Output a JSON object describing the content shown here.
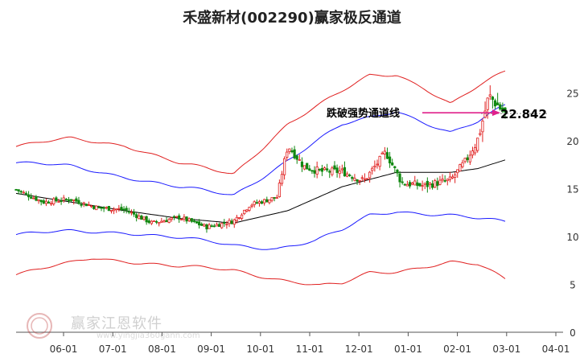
{
  "chart_data": {
    "type": "candlestick",
    "title": "禾盛新材(002290)赢家极反通道",
    "x_ticks": [
      "06-01",
      "07-01",
      "08-01",
      "09-01",
      "10-01",
      "11-01",
      "12-01",
      "01-01",
      "02-01",
      "03-01",
      "04-01"
    ],
    "y_ticks": [
      "0",
      "5",
      "10",
      "15",
      "20",
      "25"
    ],
    "ylim": [
      0,
      27
    ],
    "grid": false,
    "annotation": {
      "label": "跌破强势通道线",
      "value": 22.842,
      "value_text": "22.842"
    },
    "series": [
      {
        "role": "price",
        "colors": {
          "up": "#e02020",
          "down": "#118811"
        }
      },
      {
        "role": "middle",
        "color": "#000000"
      },
      {
        "role": "inner-bands",
        "color": "#1a1aff"
      },
      {
        "role": "outer-bands",
        "color": "#e02020"
      }
    ],
    "anchors": {
      "close": [
        [
          0,
          14.9
        ],
        [
          0.5,
          13.6
        ],
        [
          1,
          13.9
        ],
        [
          1.5,
          13.0
        ],
        [
          2,
          12.8
        ],
        [
          2.5,
          11.4
        ],
        [
          3,
          12.0
        ],
        [
          3.5,
          11.0
        ],
        [
          4,
          11.6
        ],
        [
          4.3,
          13.3
        ],
        [
          4.8,
          14.1
        ],
        [
          5,
          19.5
        ],
        [
          5.3,
          17.3
        ],
        [
          5.6,
          16.8
        ],
        [
          6,
          16.8
        ],
        [
          6.4,
          15.8
        ],
        [
          6.8,
          18.8
        ],
        [
          7.1,
          15.6
        ],
        [
          7.5,
          15.3
        ],
        [
          8,
          15.9
        ],
        [
          8.3,
          18.1
        ],
        [
          8.5,
          20.2
        ],
        [
          8.7,
          24.7
        ],
        [
          8.85,
          23.8
        ],
        [
          9,
          22.8
        ]
      ],
      "middle": [
        [
          0,
          14.5
        ],
        [
          1,
          13.6
        ],
        [
          2,
          12.7
        ],
        [
          3,
          11.9
        ],
        [
          4,
          11.4
        ],
        [
          5,
          12.7
        ],
        [
          6,
          15.2
        ],
        [
          7,
          16.7
        ],
        [
          8,
          16.7
        ],
        [
          8.5,
          17.1
        ],
        [
          9,
          18.0
        ]
      ],
      "inner_upper": [
        [
          0,
          17.7
        ],
        [
          1,
          17.3
        ],
        [
          2,
          16.3
        ],
        [
          3,
          15.1
        ],
        [
          4,
          14.3
        ],
        [
          5,
          18.0
        ],
        [
          6,
          21.6
        ],
        [
          7,
          23.2
        ],
        [
          7.5,
          22.0
        ],
        [
          8,
          20.8
        ],
        [
          8.5,
          21.9
        ],
        [
          9,
          23.7
        ]
      ],
      "inner_lower": [
        [
          0,
          10.2
        ],
        [
          1,
          10.5
        ],
        [
          2,
          10.5
        ],
        [
          3,
          9.8
        ],
        [
          4,
          9.1
        ],
        [
          4.8,
          8.8
        ],
        [
          5.5,
          9.5
        ],
        [
          6,
          10.6
        ],
        [
          6.5,
          12.2
        ],
        [
          7,
          12.7
        ],
        [
          8,
          12.2
        ],
        [
          8.5,
          11.8
        ],
        [
          9,
          11.5
        ]
      ],
      "outer_upper": [
        [
          0,
          19.4
        ],
        [
          1,
          20.2
        ],
        [
          2,
          19.6
        ],
        [
          3,
          17.6
        ],
        [
          4,
          16.5
        ],
        [
          5,
          21.8
        ],
        [
          6,
          25.1
        ],
        [
          6.5,
          26.8
        ],
        [
          7,
          27.0
        ],
        [
          7.5,
          25.6
        ],
        [
          8,
          23.8
        ],
        [
          8.5,
          25.6
        ],
        [
          9,
          27.2
        ]
      ],
      "outer_lower": [
        [
          0,
          6.0
        ],
        [
          1,
          7.2
        ],
        [
          1.4,
          7.8
        ],
        [
          2,
          7.5
        ],
        [
          3,
          6.8
        ],
        [
          4,
          6.5
        ],
        [
          5,
          5.4
        ],
        [
          5.6,
          4.8
        ],
        [
          6,
          5.0
        ],
        [
          6.5,
          6.2
        ],
        [
          7,
          6.4
        ],
        [
          7.5,
          6.9
        ],
        [
          8,
          7.3
        ],
        [
          8.5,
          7.0
        ],
        [
          9,
          5.5
        ]
      ]
    }
  },
  "watermark": {
    "text": "赢家江恩软件",
    "url": "www.yingjia360gann.com"
  }
}
